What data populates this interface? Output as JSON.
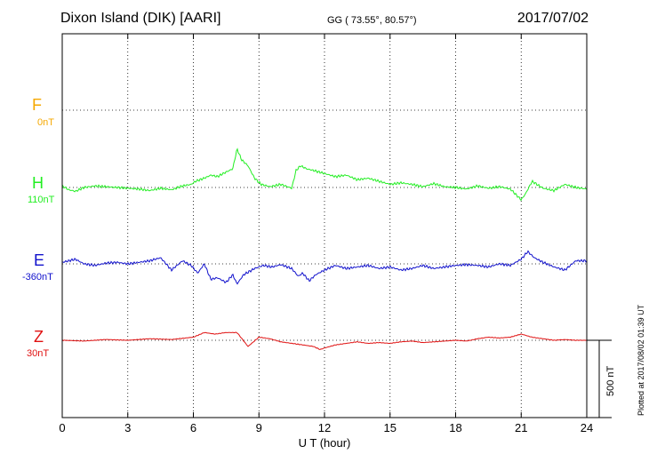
{
  "header": {
    "station": "Dixon Island (DIK)  [AARI]",
    "coords": "GG ( 73.55°,  80.57°)",
    "date": "2017/07/02"
  },
  "side_note": "Plotted at 2017/08/02 01:39 UT",
  "scale_label": "500 nT",
  "chart_data": {
    "type": "line",
    "xlabel": "U T (hour)",
    "xlim": [
      0,
      24
    ],
    "xticks": [
      0,
      3,
      6,
      9,
      12,
      15,
      18,
      21,
      24
    ],
    "xtick_labels": [
      "0",
      "3",
      "6",
      "9",
      "12",
      "15",
      "18",
      "21",
      "24"
    ],
    "grid": true,
    "units": "nT",
    "scale_bar_nT": 500,
    "series": [
      {
        "name": "F",
        "baseline_label": "0nT",
        "color": "#f5a800",
        "points": []
      },
      {
        "name": "H",
        "baseline_label": "110nT",
        "color": "#22ee22",
        "points": [
          [
            0,
            10
          ],
          [
            0.3,
            -15
          ],
          [
            0.6,
            -25
          ],
          [
            1.0,
            0
          ],
          [
            1.5,
            10
          ],
          [
            2.0,
            5
          ],
          [
            2.5,
            0
          ],
          [
            3.0,
            -5
          ],
          [
            3.5,
            -10
          ],
          [
            4.0,
            -20
          ],
          [
            4.5,
            -5
          ],
          [
            5.0,
            -15
          ],
          [
            5.5,
            10
          ],
          [
            5.9,
            20
          ],
          [
            6.1,
            40
          ],
          [
            6.5,
            60
          ],
          [
            6.8,
            80
          ],
          [
            7.1,
            70
          ],
          [
            7.5,
            100
          ],
          [
            7.8,
            120
          ],
          [
            8.0,
            250
          ],
          [
            8.2,
            180
          ],
          [
            8.5,
            140
          ],
          [
            8.8,
            60
          ],
          [
            9.1,
            20
          ],
          [
            9.5,
            5
          ],
          [
            10.0,
            20
          ],
          [
            10.5,
            -5
          ],
          [
            10.7,
            110
          ],
          [
            10.9,
            140
          ],
          [
            11.2,
            120
          ],
          [
            11.5,
            110
          ],
          [
            12.0,
            90
          ],
          [
            12.5,
            70
          ],
          [
            13.0,
            80
          ],
          [
            13.5,
            50
          ],
          [
            14.0,
            60
          ],
          [
            14.5,
            40
          ],
          [
            15.0,
            20
          ],
          [
            15.5,
            30
          ],
          [
            16.0,
            20
          ],
          [
            16.5,
            5
          ],
          [
            17.0,
            25
          ],
          [
            17.5,
            5
          ],
          [
            18.0,
            0
          ],
          [
            18.5,
            -10
          ],
          [
            19.0,
            10
          ],
          [
            19.5,
            -5
          ],
          [
            20.0,
            5
          ],
          [
            20.5,
            -10
          ],
          [
            21.0,
            -80
          ],
          [
            21.2,
            -40
          ],
          [
            21.5,
            40
          ],
          [
            22.0,
            -5
          ],
          [
            22.5,
            -20
          ],
          [
            23.0,
            20
          ],
          [
            23.5,
            0
          ],
          [
            24.0,
            -10
          ]
        ]
      },
      {
        "name": "E",
        "baseline_label": "-360nT",
        "color": "#1111cc",
        "points": [
          [
            0,
            10
          ],
          [
            0.3,
            20
          ],
          [
            0.6,
            30
          ],
          [
            1.0,
            0
          ],
          [
            1.5,
            -10
          ],
          [
            2.0,
            5
          ],
          [
            2.5,
            10
          ],
          [
            3.0,
            0
          ],
          [
            3.5,
            10
          ],
          [
            4.0,
            20
          ],
          [
            4.5,
            40
          ],
          [
            5.0,
            -40
          ],
          [
            5.5,
            20
          ],
          [
            5.9,
            -10
          ],
          [
            6.2,
            -60
          ],
          [
            6.5,
            0
          ],
          [
            6.8,
            -100
          ],
          [
            7.1,
            -90
          ],
          [
            7.5,
            -120
          ],
          [
            7.8,
            -70
          ],
          [
            8.0,
            -130
          ],
          [
            8.3,
            -70
          ],
          [
            8.8,
            -30
          ],
          [
            9.2,
            -10
          ],
          [
            9.6,
            -20
          ],
          [
            10.0,
            -5
          ],
          [
            10.5,
            -30
          ],
          [
            10.8,
            -80
          ],
          [
            11.0,
            -60
          ],
          [
            11.3,
            -110
          ],
          [
            11.6,
            -70
          ],
          [
            12.0,
            -40
          ],
          [
            12.5,
            -10
          ],
          [
            13.0,
            -30
          ],
          [
            13.5,
            -20
          ],
          [
            14.0,
            -10
          ],
          [
            14.5,
            -30
          ],
          [
            15.0,
            -20
          ],
          [
            15.5,
            -40
          ],
          [
            16.0,
            -30
          ],
          [
            16.5,
            -10
          ],
          [
            17.0,
            -30
          ],
          [
            17.5,
            -20
          ],
          [
            18.0,
            -10
          ],
          [
            18.5,
            -5
          ],
          [
            19.0,
            -10
          ],
          [
            19.5,
            -20
          ],
          [
            20.0,
            0
          ],
          [
            20.5,
            -10
          ],
          [
            21.0,
            30
          ],
          [
            21.3,
            80
          ],
          [
            21.6,
            40
          ],
          [
            22.0,
            10
          ],
          [
            22.5,
            -20
          ],
          [
            23.0,
            -40
          ],
          [
            23.5,
            20
          ],
          [
            24.0,
            20
          ]
        ]
      },
      {
        "name": "Z",
        "baseline_label": "30nT",
        "color": "#e01111",
        "points": [
          [
            0,
            0
          ],
          [
            1.0,
            -5
          ],
          [
            2.0,
            5
          ],
          [
            3.0,
            0
          ],
          [
            4.0,
            10
          ],
          [
            5.0,
            5
          ],
          [
            6.0,
            20
          ],
          [
            6.5,
            50
          ],
          [
            7.0,
            40
          ],
          [
            7.5,
            50
          ],
          [
            8.0,
            50
          ],
          [
            8.5,
            -40
          ],
          [
            9.0,
            20
          ],
          [
            9.5,
            10
          ],
          [
            10.0,
            -10
          ],
          [
            10.5,
            -20
          ],
          [
            11.0,
            -30
          ],
          [
            11.5,
            -40
          ],
          [
            11.8,
            -60
          ],
          [
            12.0,
            -50
          ],
          [
            12.5,
            -30
          ],
          [
            13.0,
            -20
          ],
          [
            13.5,
            -10
          ],
          [
            14.0,
            -20
          ],
          [
            14.5,
            -15
          ],
          [
            15.0,
            -20
          ],
          [
            15.5,
            -10
          ],
          [
            16.0,
            -5
          ],
          [
            16.5,
            -15
          ],
          [
            17.0,
            -10
          ],
          [
            17.5,
            -5
          ],
          [
            18.0,
            0
          ],
          [
            18.5,
            -5
          ],
          [
            19.0,
            10
          ],
          [
            19.5,
            20
          ],
          [
            20.0,
            15
          ],
          [
            20.5,
            20
          ],
          [
            21.0,
            40
          ],
          [
            21.5,
            20
          ],
          [
            22.0,
            10
          ],
          [
            22.5,
            0
          ],
          [
            23.0,
            5
          ],
          [
            23.5,
            0
          ],
          [
            24.0,
            0
          ]
        ]
      }
    ]
  }
}
